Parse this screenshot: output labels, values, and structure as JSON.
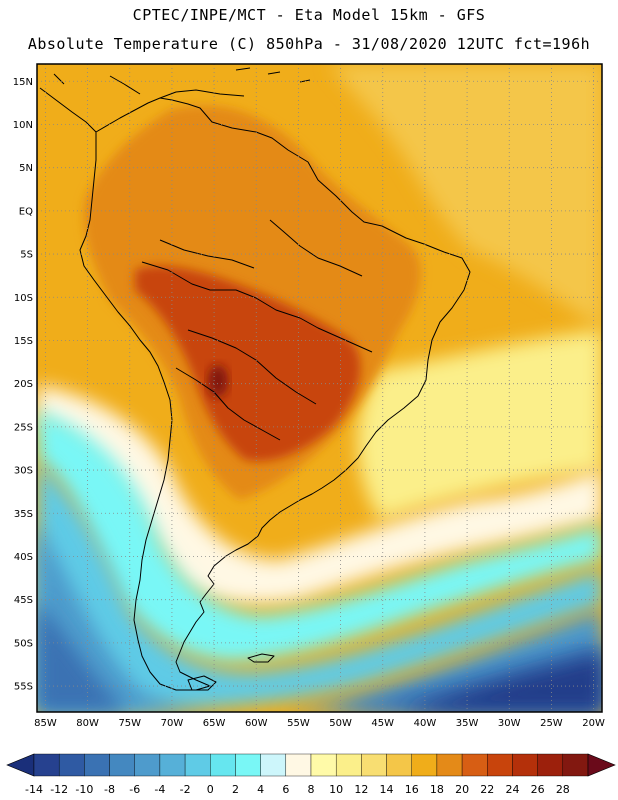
{
  "header": {
    "line1": "CPTEC/INPE/MCT -  Eta Model 15km - GFS",
    "line2": "Absolute Temperature (C) 850hPa - 31/08/2020 12UTC fct=196h"
  },
  "map": {
    "lat_range": [
      -58,
      17
    ],
    "lon_range": [
      -86,
      -19
    ],
    "lat_ticks": [
      {
        "value": 15,
        "label": "15N"
      },
      {
        "value": 10,
        "label": "10N"
      },
      {
        "value": 5,
        "label": "5N"
      },
      {
        "value": 0,
        "label": "EQ"
      },
      {
        "value": -5,
        "label": "5S"
      },
      {
        "value": -10,
        "label": "10S"
      },
      {
        "value": -15,
        "label": "15S"
      },
      {
        "value": -20,
        "label": "20S"
      },
      {
        "value": -25,
        "label": "25S"
      },
      {
        "value": -30,
        "label": "30S"
      },
      {
        "value": -35,
        "label": "35S"
      },
      {
        "value": -40,
        "label": "40S"
      },
      {
        "value": -45,
        "label": "45S"
      },
      {
        "value": -50,
        "label": "50S"
      },
      {
        "value": -55,
        "label": "55S"
      }
    ],
    "lon_ticks": [
      {
        "value": -85,
        "label": "85W"
      },
      {
        "value": -80,
        "label": "80W"
      },
      {
        "value": -75,
        "label": "75W"
      },
      {
        "value": -70,
        "label": "70W"
      },
      {
        "value": -65,
        "label": "65W"
      },
      {
        "value": -60,
        "label": "60W"
      },
      {
        "value": -55,
        "label": "55W"
      },
      {
        "value": -50,
        "label": "50W"
      },
      {
        "value": -45,
        "label": "45W"
      },
      {
        "value": -40,
        "label": "40W"
      },
      {
        "value": -35,
        "label": "35W"
      },
      {
        "value": -30,
        "label": "30W"
      },
      {
        "value": -25,
        "label": "25W"
      },
      {
        "value": -20,
        "label": "20W"
      }
    ],
    "grid": "dotted"
  },
  "colorbar": {
    "min_color": "#1a2f7a",
    "max_color": "#6a0a1a",
    "bins": [
      {
        "color": "#26418f"
      },
      {
        "color": "#2f5aa3"
      },
      {
        "color": "#3a72b3"
      },
      {
        "color": "#4488c0"
      },
      {
        "color": "#4e9bcc"
      },
      {
        "color": "#56b0d8"
      },
      {
        "color": "#5fcbe6"
      },
      {
        "color": "#66e6ef"
      },
      {
        "color": "#79f7f6"
      },
      {
        "color": "#cdf6fb"
      },
      {
        "color": "#fff8e4"
      },
      {
        "color": "#fffaa8"
      },
      {
        "color": "#fbef8a"
      },
      {
        "color": "#f8de72"
      },
      {
        "color": "#f4c648"
      },
      {
        "color": "#f0ad1a"
      },
      {
        "color": "#e48a18"
      },
      {
        "color": "#d75e14"
      },
      {
        "color": "#c8440c"
      },
      {
        "color": "#b4300a"
      },
      {
        "color": "#9c200c"
      },
      {
        "color": "#821810"
      }
    ],
    "labels": [
      "-14",
      "-12",
      "-10",
      "-8",
      "-6",
      "-4",
      "-2",
      "0",
      "2",
      "4",
      "6",
      "8",
      "10",
      "12",
      "14",
      "16",
      "18",
      "20",
      "22",
      "24",
      "26",
      "28"
    ]
  },
  "field_colors": {
    "deep_blue": "#203c8a",
    "blue": "#3a72b3",
    "mid_blue": "#4e9bcc",
    "light_blue": "#5fcbe6",
    "cyan": "#79f7f6",
    "pale": "#fff8e4",
    "light_yellow": "#fbef8a",
    "yellow": "#f4c648",
    "gold": "#f0ad1a",
    "orange": "#e48a18",
    "red_orange": "#c8440c",
    "dark_red": "#821810"
  }
}
